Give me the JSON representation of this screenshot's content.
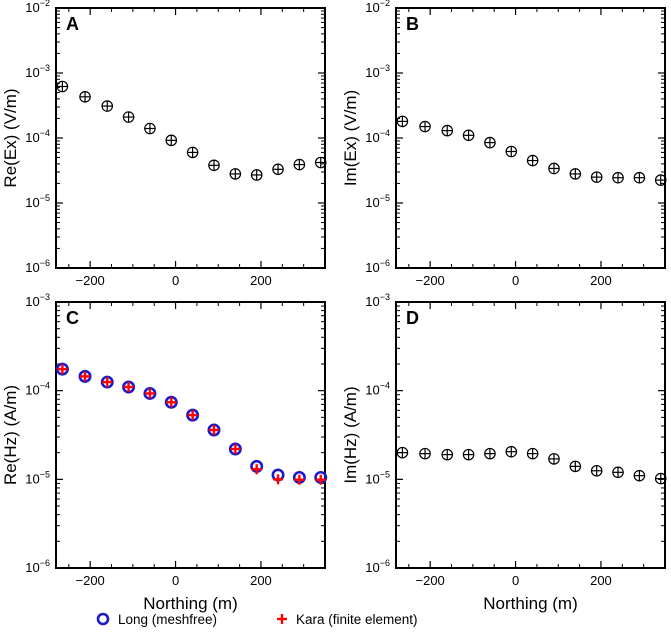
{
  "colors": {
    "long": "#1a1acc",
    "kara": "#ff0000",
    "axis": "#000000"
  },
  "legend": [
    {
      "key": "long",
      "label": "Long (meshfree)",
      "marker": "circle"
    },
    {
      "key": "kara",
      "label": "Kara (finite element)",
      "marker": "plus"
    }
  ],
  "chart_data": [
    {
      "type": "scatter",
      "panel": "A",
      "ylabel": "Re(Ex) (V/m)",
      "xlabel": "",
      "xlim": [
        -280,
        350
      ],
      "ylim_log10": [
        -6,
        -2
      ],
      "xticks": [
        -200,
        0,
        200
      ],
      "yticks_log10": [
        -6,
        -5,
        -4,
        -3,
        -2
      ],
      "series": [
        {
          "name": "Long (meshfree)",
          "x": [
            -265,
            -212,
            -160,
            -110,
            -60,
            -10,
            40,
            90,
            140,
            190,
            240,
            290,
            340
          ],
          "y": [
            0.00062,
            0.00043,
            0.00031,
            0.00021,
            0.00014,
            9.2e-05,
            6e-05,
            3.8e-05,
            2.8e-05,
            2.7e-05,
            3.3e-05,
            3.9e-05,
            4.2e-05
          ]
        },
        {
          "name": "Kara (finite element)",
          "x": [
            -265,
            -212,
            -160,
            -110,
            -60,
            -10,
            40,
            90,
            140,
            190,
            240,
            290,
            340
          ],
          "y": [
            0.00062,
            0.00043,
            0.00031,
            0.00021,
            0.00014,
            9.2e-05,
            6e-05,
            3.8e-05,
            2.8e-05,
            2.7e-05,
            3.3e-05,
            3.9e-05,
            4.2e-05
          ]
        }
      ]
    },
    {
      "type": "scatter",
      "panel": "B",
      "ylabel": "Im(Ex) (V/m)",
      "xlabel": "",
      "xlim": [
        -280,
        350
      ],
      "ylim_log10": [
        -6,
        -2
      ],
      "xticks": [
        -200,
        0,
        200
      ],
      "yticks_log10": [
        -6,
        -5,
        -4,
        -3,
        -2
      ],
      "series": [
        {
          "name": "Long (meshfree)",
          "x": [
            -265,
            -212,
            -160,
            -110,
            -60,
            -10,
            40,
            90,
            140,
            190,
            240,
            290,
            340
          ],
          "y": [
            0.00018,
            0.00015,
            0.00013,
            0.00011,
            8.5e-05,
            6.2e-05,
            4.5e-05,
            3.4e-05,
            2.8e-05,
            2.5e-05,
            2.45e-05,
            2.45e-05,
            2.25e-05
          ]
        },
        {
          "name": "Kara (finite element)",
          "x": [
            -265,
            -212,
            -160,
            -110,
            -60,
            -10,
            40,
            90,
            140,
            190,
            240,
            290,
            340
          ],
          "y": [
            0.00018,
            0.00015,
            0.00013,
            0.00011,
            8.5e-05,
            6.2e-05,
            4.5e-05,
            3.4e-05,
            2.8e-05,
            2.5e-05,
            2.45e-05,
            2.45e-05,
            2.25e-05
          ]
        }
      ]
    },
    {
      "type": "scatter",
      "panel": "C",
      "ylabel": "Re(Hz) (A/m)",
      "xlabel": "Northing (m)",
      "xlim": [
        -280,
        350
      ],
      "ylim_log10": [
        -6,
        -3
      ],
      "xticks": [
        -200,
        0,
        200
      ],
      "yticks_log10": [
        -6,
        -5,
        -4,
        -3
      ],
      "series": [
        {
          "name": "Long (meshfree)",
          "x": [
            -265,
            -212,
            -160,
            -110,
            -60,
            -10,
            40,
            90,
            140,
            190,
            240,
            290,
            340
          ],
          "y": [
            0.000175,
            0.000145,
            0.000125,
            0.00011,
            9.3e-05,
            7.4e-05,
            5.3e-05,
            3.6e-05,
            2.2e-05,
            1.4e-05,
            1.12e-05,
            1.05e-05,
            1.05e-05
          ]
        },
        {
          "name": "Kara (finite element)",
          "x": [
            -265,
            -212,
            -160,
            -110,
            -60,
            -10,
            40,
            90,
            140,
            190,
            240,
            290,
            340
          ],
          "y": [
            0.000175,
            0.000145,
            0.000125,
            0.00011,
            9.3e-05,
            7.4e-05,
            5.3e-05,
            3.6e-05,
            2.2e-05,
            1.3e-05,
            1e-05,
            9.9e-06,
            9.9e-06
          ]
        }
      ]
    },
    {
      "type": "scatter",
      "panel": "D",
      "ylabel": "Im(Hz) (A/m)",
      "xlabel": "Northing (m)",
      "xlim": [
        -280,
        350
      ],
      "ylim_log10": [
        -6,
        -3
      ],
      "xticks": [
        -200,
        0,
        200
      ],
      "yticks_log10": [
        -6,
        -5,
        -4,
        -3
      ],
      "series": [
        {
          "name": "Long (meshfree)",
          "x": [
            -265,
            -212,
            -160,
            -110,
            -60,
            -10,
            40,
            90,
            140,
            190,
            240,
            290,
            340
          ],
          "y": [
            2e-05,
            1.95e-05,
            1.9e-05,
            1.9e-05,
            1.95e-05,
            2.05e-05,
            1.95e-05,
            1.7e-05,
            1.4e-05,
            1.25e-05,
            1.2e-05,
            1.1e-05,
            1.02e-05
          ]
        },
        {
          "name": "Kara (finite element)",
          "x": [
            -265,
            -212,
            -160,
            -110,
            -60,
            -10,
            40,
            90,
            140,
            190,
            240,
            290,
            340
          ],
          "y": [
            2e-05,
            1.95e-05,
            1.9e-05,
            1.9e-05,
            1.95e-05,
            2.05e-05,
            1.95e-05,
            1.7e-05,
            1.4e-05,
            1.25e-05,
            1.2e-05,
            1.1e-05,
            1.02e-05
          ]
        }
      ]
    }
  ]
}
